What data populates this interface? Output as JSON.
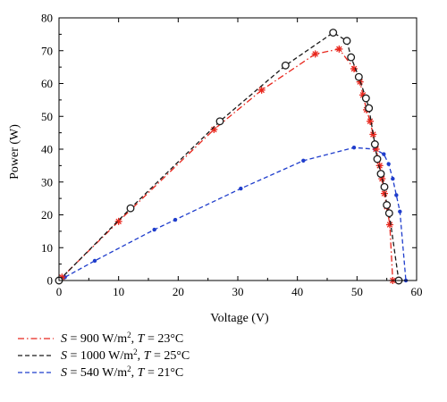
{
  "chart_data": {
    "type": "line",
    "title": "",
    "xlabel": "Voltage (V)",
    "ylabel": "Power (W)",
    "xlim": [
      0,
      60
    ],
    "ylim": [
      0,
      80
    ],
    "x_ticks": [
      "0",
      "10",
      "20",
      "30",
      "40",
      "50",
      "60"
    ],
    "y_ticks": [
      "0",
      "10",
      "20",
      "30",
      "40",
      "50",
      "60",
      "70",
      "80"
    ],
    "grid": false,
    "legend_position": "bottom-left, below plot",
    "series": [
      {
        "name": "S = 900 W/m², T = 23°C",
        "legend": {
          "pre": "S",
          "a": " = 900 W/m",
          "sup": "2",
          "b": ", ",
          "t": "T",
          "c": " = 23°C"
        },
        "color": "#e8261c",
        "dash": "dashdot",
        "marker": "asterisk",
        "x": [
          0,
          0.5,
          10,
          26,
          34,
          43,
          47,
          49.5,
          50.5,
          51,
          51.6,
          52.2,
          52.7,
          53.2,
          53.8,
          54.2,
          54.6,
          55,
          55.5,
          56
        ],
        "y": [
          0,
          1,
          18,
          46,
          58,
          69,
          70.5,
          64.5,
          60.5,
          56.5,
          52,
          48.5,
          44.5,
          40,
          35,
          31,
          26.5,
          22.5,
          17,
          0
        ]
      },
      {
        "name": "S = 1000 W/m², T = 25°C",
        "legend": {
          "pre": "S",
          "a": " = 1000 W/m",
          "sup": "2",
          "b": ", ",
          "t": "T",
          "c": " = 25°C"
        },
        "color": "#1a1a1a",
        "dash": "dash",
        "marker": "circle",
        "x": [
          0,
          12,
          27,
          38,
          46,
          48.3,
          49,
          50.3,
          51.5,
          52,
          53,
          53.4,
          54,
          54.6,
          55,
          55.4,
          57
        ],
        "y": [
          0,
          22,
          48.5,
          65.5,
          75.5,
          73,
          68,
          62,
          55.5,
          52.5,
          41.5,
          37,
          32.5,
          28.5,
          23,
          20.5,
          0
        ]
      },
      {
        "name": "S = 540 W/m², T = 21°C",
        "legend": {
          "pre": "S",
          "a": " = 540 W/m",
          "sup": "2",
          "b": ", ",
          "t": "T",
          "c": " = 21°C"
        },
        "color": "#1f3dcc",
        "dash": "dash",
        "marker": "dot",
        "x": [
          0,
          1,
          6,
          16,
          19.5,
          30.5,
          41,
          49.5,
          53,
          54.5,
          55.3,
          56,
          56.6,
          57.2,
          58.2
        ],
        "y": [
          0,
          1,
          6,
          15.5,
          18.5,
          28,
          36.5,
          40.5,
          40,
          38.5,
          35.5,
          31,
          26,
          21,
          0
        ]
      }
    ]
  }
}
